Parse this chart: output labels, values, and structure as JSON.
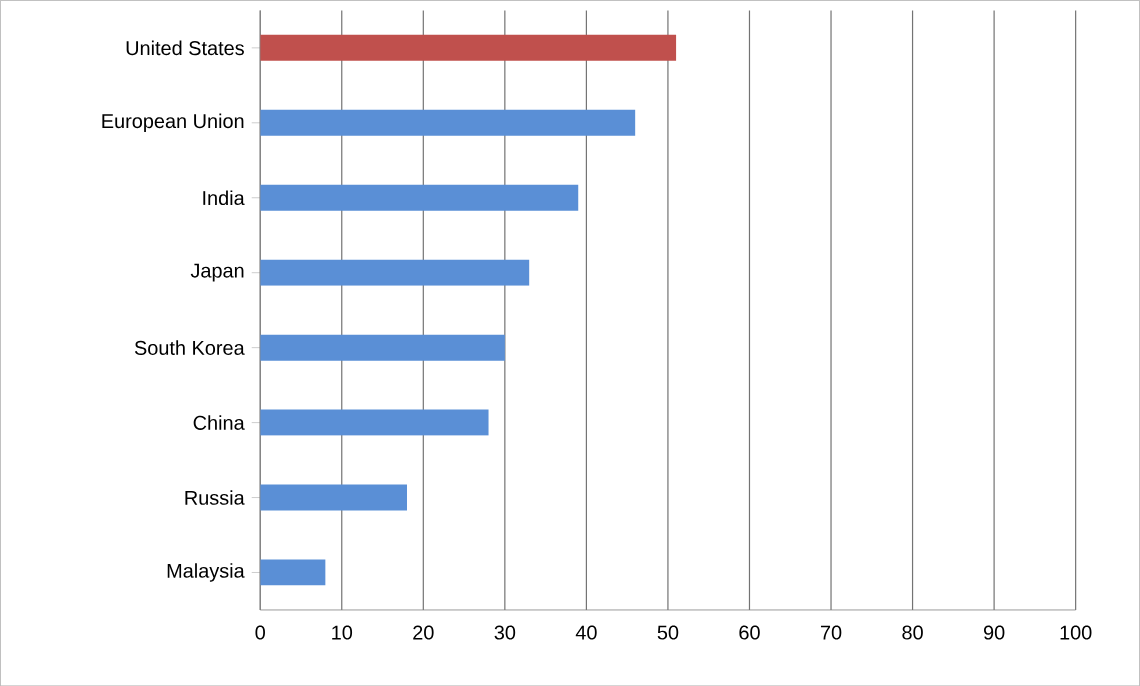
{
  "chart_data": {
    "type": "bar",
    "orientation": "horizontal",
    "categories": [
      "United States",
      "European Union",
      "India",
      "Japan",
      "South Korea",
      "China",
      "Russia",
      "Malaysia"
    ],
    "values": [
      51,
      46,
      39,
      33,
      30,
      28,
      18,
      8
    ],
    "colors": [
      "#c0504d",
      "#5a8fd6",
      "#5a8fd6",
      "#5a8fd6",
      "#5a8fd6",
      "#5a8fd6",
      "#5a8fd6",
      "#5a8fd6"
    ],
    "xlim": [
      0,
      100
    ],
    "xticks": [
      0,
      10,
      20,
      30,
      40,
      50,
      60,
      70,
      80,
      90,
      100
    ],
    "grid": "x"
  }
}
